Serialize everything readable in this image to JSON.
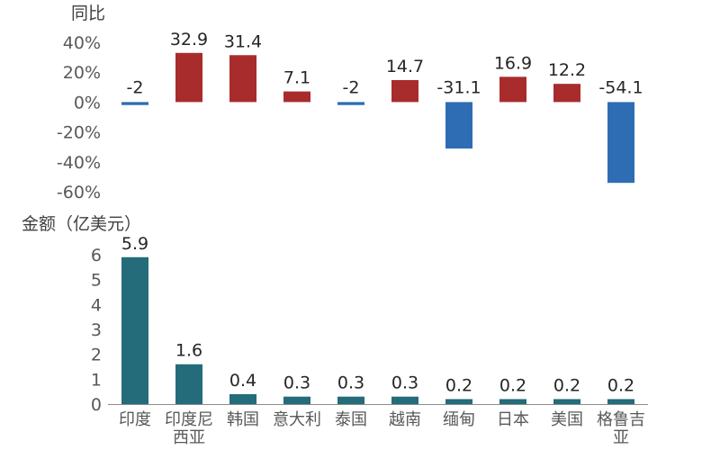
{
  "chart_data": [
    {
      "type": "bar",
      "title": "",
      "ylabel": "同比",
      "ytick_labels": [
        "40%",
        "20%",
        "0%",
        "-20%",
        "-40%",
        "-60%"
      ],
      "ylim": [
        -60,
        40
      ],
      "categories": [
        "印度",
        "印度尼西亚",
        "韩国",
        "意大利",
        "泰国",
        "越南",
        "缅甸",
        "日本",
        "美国",
        "格鲁吉亚"
      ],
      "values": [
        -2,
        32.9,
        31.4,
        7.1,
        -2,
        14.7,
        -31.1,
        16.9,
        12.2,
        -54.1
      ],
      "value_labels": [
        "-2",
        "32.9",
        "31.4",
        "7.1",
        "-2",
        "14.7",
        "-31.1",
        "16.9",
        "12.2",
        "-54.1"
      ],
      "colors": {
        "positive": "#A82C2C",
        "negative": "#2E6DB4"
      }
    },
    {
      "type": "bar",
      "title": "",
      "ylabel": "金额（亿美元）",
      "ytick_labels": [
        "6",
        "5",
        "4",
        "3",
        "2",
        "1",
        "0"
      ],
      "ylim": [
        0,
        6
      ],
      "categories": [
        "印度",
        "印度尼西亚",
        "韩国",
        "意大利",
        "泰国",
        "越南",
        "缅甸",
        "日本",
        "美国",
        "格鲁吉亚"
      ],
      "category_label_lines": [
        [
          "印度"
        ],
        [
          "印度尼",
          "西亚"
        ],
        [
          "韩国"
        ],
        [
          "意大利"
        ],
        [
          "泰国"
        ],
        [
          "越南"
        ],
        [
          "缅甸"
        ],
        [
          "日本"
        ],
        [
          "美国"
        ],
        [
          "格鲁吉",
          "亚"
        ]
      ],
      "values": [
        5.9,
        1.6,
        0.4,
        0.3,
        0.3,
        0.3,
        0.2,
        0.2,
        0.2,
        0.2
      ],
      "value_labels": [
        "5.9",
        "1.6",
        "0.4",
        "0.3",
        "0.3",
        "0.3",
        "0.2",
        "0.2",
        "0.2",
        "0.2"
      ],
      "colors": {
        "bar": "#246C79"
      }
    }
  ]
}
